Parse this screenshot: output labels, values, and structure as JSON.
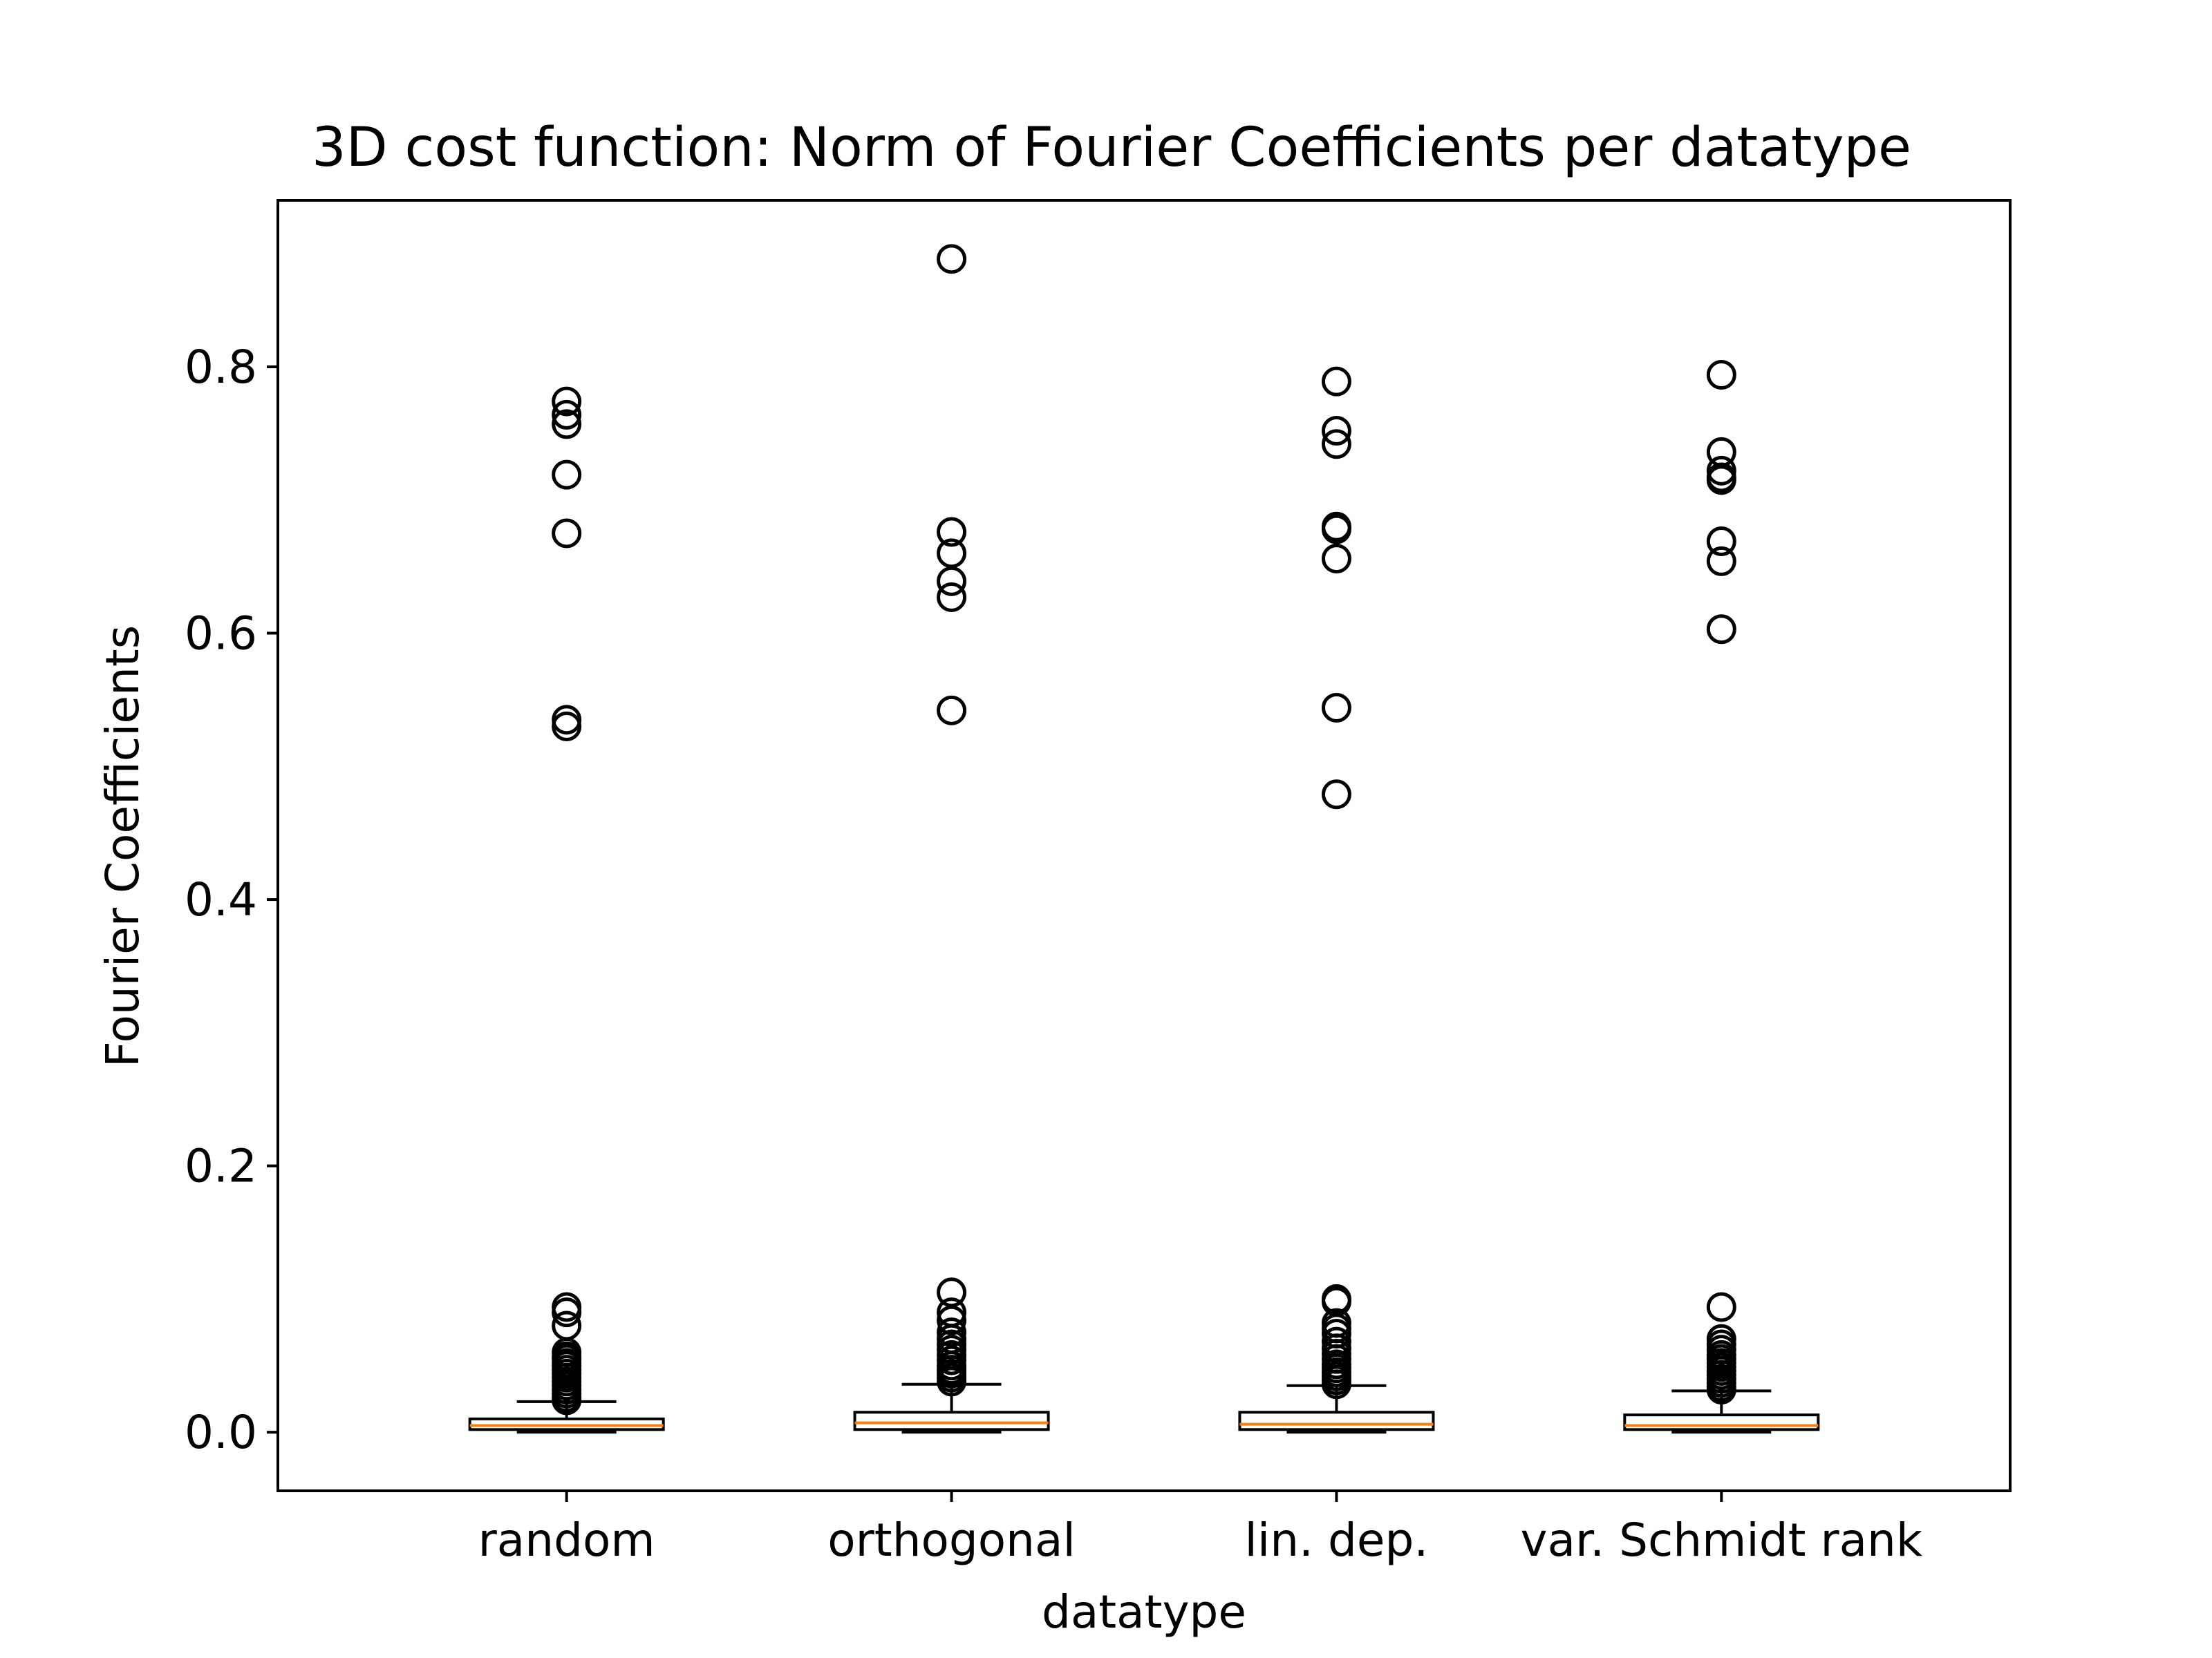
{
  "chart_data": {
    "type": "box",
    "title": "3D cost function: Norm of Fourier Coefficients per datatype",
    "xlabel": "datatype",
    "ylabel": "Fourier Coefficients",
    "ylim": [
      -0.044,
      0.925
    ],
    "yticks": [
      0.0,
      0.2,
      0.4,
      0.6,
      0.8
    ],
    "ytick_labels": [
      "0.0",
      "0.2",
      "0.4",
      "0.6",
      "0.8"
    ],
    "grid": false,
    "colors": {
      "box": "#000000",
      "median": "#ff7f0e",
      "outlier": "#000000"
    },
    "categories": [
      "random",
      "orthogonal",
      "lin. dep.",
      "var. Schmidt rank"
    ],
    "series": [
      {
        "category": "random",
        "whisker_low": 0.0,
        "q1": 0.002,
        "median": 0.005,
        "q3": 0.01,
        "whisker_high": 0.023,
        "outliers": [
          0.774,
          0.764,
          0.757,
          0.719,
          0.675,
          0.535,
          0.53,
          0.094,
          0.09,
          0.08,
          0.06,
          0.057,
          0.055,
          0.052,
          0.05,
          0.047,
          0.044,
          0.041,
          0.038,
          0.035,
          0.032,
          0.029,
          0.026,
          0.024
        ]
      },
      {
        "category": "orthogonal",
        "whisker_low": 0.0,
        "q1": 0.002,
        "median": 0.007,
        "q3": 0.015,
        "whisker_high": 0.036,
        "outliers": [
          0.881,
          0.676,
          0.66,
          0.639,
          0.627,
          0.542,
          0.105,
          0.09,
          0.084,
          0.075,
          0.07,
          0.066,
          0.062,
          0.058,
          0.054,
          0.05,
          0.047,
          0.044,
          0.041,
          0.038
        ]
      },
      {
        "category": "lin. dep.",
        "whisker_low": 0.0,
        "q1": 0.002,
        "median": 0.006,
        "q3": 0.015,
        "whisker_high": 0.035,
        "outliers": [
          0.789,
          0.752,
          0.742,
          0.68,
          0.678,
          0.656,
          0.544,
          0.479,
          0.1,
          0.098,
          0.082,
          0.078,
          0.074,
          0.068,
          0.063,
          0.059,
          0.055,
          0.051,
          0.048,
          0.045,
          0.042,
          0.039,
          0.036
        ]
      },
      {
        "category": "var. Schmidt rank",
        "whisker_low": 0.0,
        "q1": 0.002,
        "median": 0.005,
        "q3": 0.013,
        "whisker_high": 0.031,
        "outliers": [
          0.794,
          0.736,
          0.722,
          0.717,
          0.715,
          0.669,
          0.654,
          0.603,
          0.094,
          0.07,
          0.066,
          0.062,
          0.058,
          0.055,
          0.052,
          0.049,
          0.046,
          0.043,
          0.04,
          0.037,
          0.034,
          0.032
        ]
      }
    ]
  }
}
